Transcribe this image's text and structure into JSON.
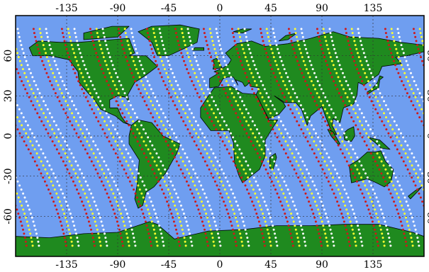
{
  "map": {
    "colors": {
      "ocean": "#6f9ef0",
      "land": "#1f8a1f",
      "coastline": "#000000",
      "gridline": "#333333",
      "track_red": "#d01818",
      "track_yellow": "#ffff30",
      "track_white": "#ffffff"
    },
    "lon_ticks": [
      {
        "value": -135,
        "label": "-135"
      },
      {
        "value": -90,
        "label": "-90"
      },
      {
        "value": -45,
        "label": "-45"
      },
      {
        "value": 0,
        "label": "0"
      },
      {
        "value": 45,
        "label": "45"
      },
      {
        "value": 90,
        "label": "90"
      },
      {
        "value": 135,
        "label": "135"
      }
    ],
    "lat_ticks": [
      {
        "value": 60,
        "label": "60"
      },
      {
        "value": 30,
        "label": "30"
      },
      {
        "value": 0,
        "label": "0"
      },
      {
        "value": -30,
        "label": "-30"
      },
      {
        "value": -60,
        "label": "-60"
      }
    ],
    "extent": {
      "lon": [
        -180,
        180
      ],
      "lat": [
        -90,
        90
      ]
    },
    "grid": true,
    "satellite_tracks": {
      "description_colors": [
        "red",
        "yellow",
        "white"
      ],
      "equator_crossing_lons": [
        -175,
        -150,
        -125,
        -100,
        -75,
        -50,
        -25,
        0,
        25,
        50,
        75,
        100,
        125,
        150
      ]
    }
  }
}
